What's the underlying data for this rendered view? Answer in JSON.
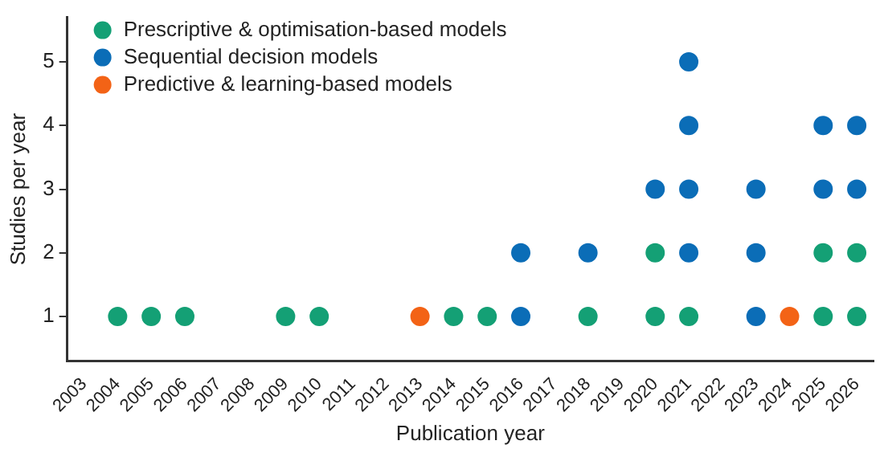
{
  "chart_data": {
    "type": "scatter",
    "xlabel": "Publication year",
    "ylabel": "Studies per year",
    "xlim": [
      2002.5,
      2026.5
    ],
    "xticks": [
      2003,
      2004,
      2005,
      2006,
      2007,
      2008,
      2009,
      2010,
      2011,
      2012,
      2013,
      2014,
      2015,
      2016,
      2017,
      2018,
      2019,
      2020,
      2021,
      2022,
      2023,
      2024,
      2025,
      2026
    ],
    "ylim": [
      0.3,
      5.7
    ],
    "yticks": [
      1,
      2,
      3,
      4,
      5
    ],
    "grid": false,
    "legend": "top left",
    "marker": "circle",
    "series": [
      {
        "name": "Prescriptive & optimisation-based models",
        "color": "#14a075",
        "x": [
          2004,
          2005,
          2006,
          2009,
          2010,
          2014,
          2015,
          2018,
          2020,
          2020,
          2021,
          2025,
          2025,
          2026,
          2026
        ],
        "values": [
          1,
          1,
          1,
          1,
          1,
          1,
          1,
          1,
          1,
          2,
          1,
          1,
          2,
          1,
          2
        ]
      },
      {
        "name": "Sequential decision models",
        "color": "#0b6db7",
        "x": [
          2016,
          2016,
          2018,
          2020,
          2021,
          2021,
          2021,
          2021,
          2023,
          2023,
          2023,
          2025,
          2025,
          2026,
          2026
        ],
        "values": [
          1,
          2,
          2,
          3,
          2,
          3,
          4,
          5,
          1,
          2,
          3,
          3,
          4,
          3,
          4
        ]
      },
      {
        "name": "Predictive & learning-based models",
        "color": "#f36316",
        "x": [
          2013,
          2024
        ],
        "values": [
          1,
          1
        ]
      }
    ]
  }
}
